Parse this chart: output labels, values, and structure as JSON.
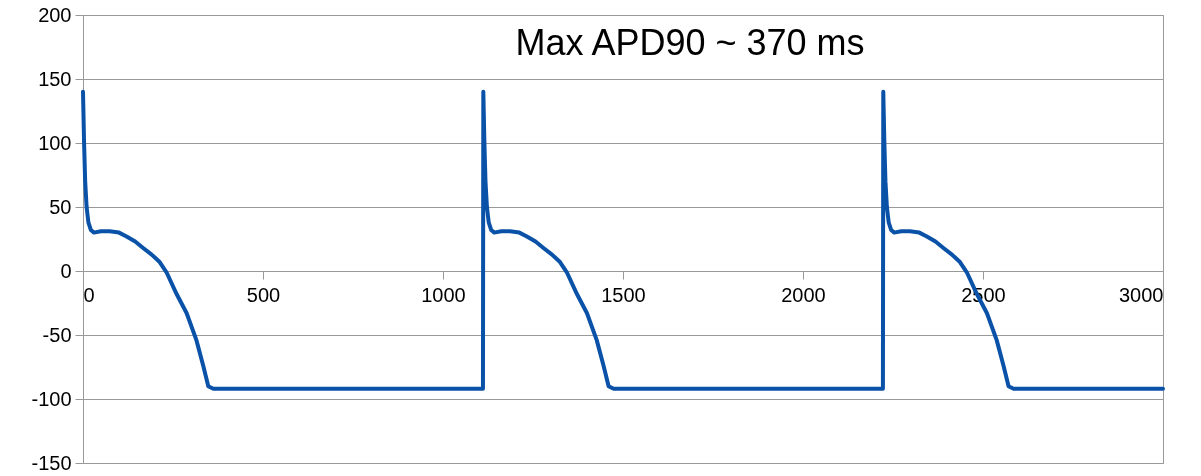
{
  "chart_data": {
    "type": "line",
    "title": "Max APD90 ~ 370 ms",
    "color": "#0a52a8",
    "x": [
      0,
      3,
      6,
      10,
      15,
      22,
      30,
      50,
      74,
      100,
      121,
      145,
      167,
      190,
      213,
      232,
      260,
      288,
      315,
      334,
      348,
      362,
      1111,
      1112,
      1115,
      1118,
      1122,
      1127,
      1134,
      1142,
      1162,
      1186,
      1212,
      1233,
      1257,
      1279,
      1302,
      1325,
      1344,
      1372,
      1400,
      1427,
      1446,
      1460,
      1474,
      2222,
      2223,
      2226,
      2229,
      2233,
      2238,
      2245,
      2253,
      2273,
      2297,
      2323,
      2344,
      2368,
      2390,
      2413,
      2436,
      2455,
      2483,
      2511,
      2538,
      2557,
      2571,
      2585,
      3000
    ],
    "values": [
      140,
      100,
      70,
      50,
      38,
      32,
      30,
      31,
      31,
      30,
      27,
      23,
      18,
      13,
      7,
      -1,
      -18,
      -33,
      -54,
      -74,
      -90,
      -92,
      -92,
      140,
      100,
      70,
      50,
      38,
      32,
      30,
      31,
      31,
      30,
      27,
      23,
      18,
      13,
      7,
      -1,
      -18,
      -33,
      -54,
      -74,
      -90,
      -92,
      -92,
      140,
      100,
      70,
      50,
      38,
      32,
      30,
      31,
      31,
      30,
      27,
      23,
      18,
      13,
      7,
      -1,
      -18,
      -33,
      -54,
      -74,
      -90,
      -92,
      -92
    ],
    "xlim": [
      0,
      3000
    ],
    "xticks": [
      0,
      500,
      1000,
      1500,
      2000,
      2500,
      3000
    ],
    "ylim": [
      -150,
      200
    ],
    "yticks": [
      -150,
      -100,
      -50,
      0,
      50,
      100,
      150,
      200
    ],
    "grid": "y"
  }
}
